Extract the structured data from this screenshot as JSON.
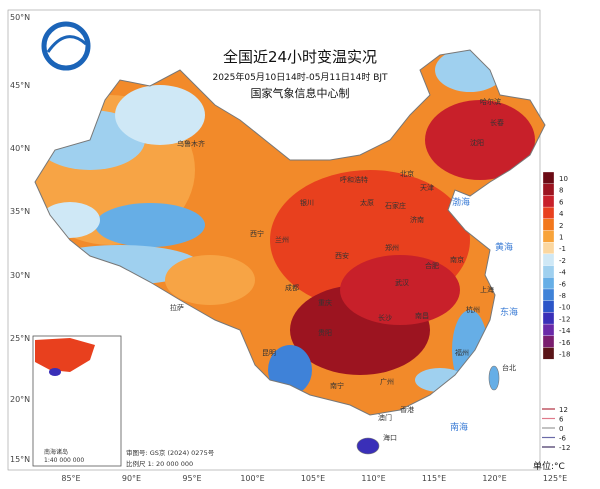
{
  "header": {
    "title": "全国近24小时变温实况",
    "subtitle": "2025年05月10日14时-05月11日14时 BJT",
    "org": "国家气象信息中心制"
  },
  "latitudes": [
    "50°N",
    "45°N",
    "40°N",
    "35°N",
    "30°N",
    "25°N",
    "20°N",
    "15°N"
  ],
  "longitudes": [
    "85°E",
    "90°E",
    "95°E",
    "100°E",
    "105°E",
    "110°E",
    "115°E",
    "120°E",
    "125°E"
  ],
  "legend": {
    "items": [
      {
        "label": "10",
        "color": "#6b0a14"
      },
      {
        "label": "8",
        "color": "#9c1420"
      },
      {
        "label": "6",
        "color": "#c8202a"
      },
      {
        "label": "4",
        "color": "#e8401e"
      },
      {
        "label": "2",
        "color": "#f2771c"
      },
      {
        "label": "1",
        "color": "#f8a33a"
      },
      {
        "label": "-1",
        "color": "#fbd7a0"
      },
      {
        "label": "-2",
        "color": "#cfe8f6"
      },
      {
        "label": "-4",
        "color": "#9fd0ef"
      },
      {
        "label": "-6",
        "color": "#66aee6"
      },
      {
        "label": "-8",
        "color": "#3f82d8"
      },
      {
        "label": "-10",
        "color": "#2b55c8"
      },
      {
        "label": "-12",
        "color": "#3a2fb8"
      },
      {
        "label": "-14",
        "color": "#6a2aa8"
      },
      {
        "label": "-16",
        "color": "#7a1e6e"
      },
      {
        "label": "-18",
        "color": "#5a1418"
      }
    ],
    "unit": "单位:°C"
  },
  "contours": {
    "items": [
      {
        "label": "12",
        "color": "#b03040"
      },
      {
        "label": "6",
        "color": "#e07a8a"
      },
      {
        "label": "0",
        "color": "#9a9a9a"
      },
      {
        "label": "-6",
        "color": "#6a6aa8"
      },
      {
        "label": "-12",
        "color": "#403060"
      }
    ]
  },
  "places": [
    "乌鲁木齐",
    "拉萨",
    "西宁",
    "兰州",
    "银川",
    "呼和浩特",
    "北京",
    "天津",
    "太原",
    "石家庄",
    "济南",
    "郑州",
    "西安",
    "成都",
    "重庆",
    "武汉",
    "合肥",
    "南京",
    "上海",
    "杭州",
    "长沙",
    "南昌",
    "福州",
    "贵阳",
    "昆明",
    "南宁",
    "广州",
    "香港",
    "澳门",
    "海口",
    "台北",
    "沈阳",
    "长春",
    "哈尔滨"
  ],
  "seas": [
    "渤海",
    "黄海",
    "东海",
    "南海"
  ],
  "inset": {
    "title": "南海诸岛",
    "scale": "1:40 000 000"
  },
  "footer": {
    "review": "审图号: GS京 (2024) 0275号",
    "scale": "比例尺 1: 20 000 000"
  }
}
